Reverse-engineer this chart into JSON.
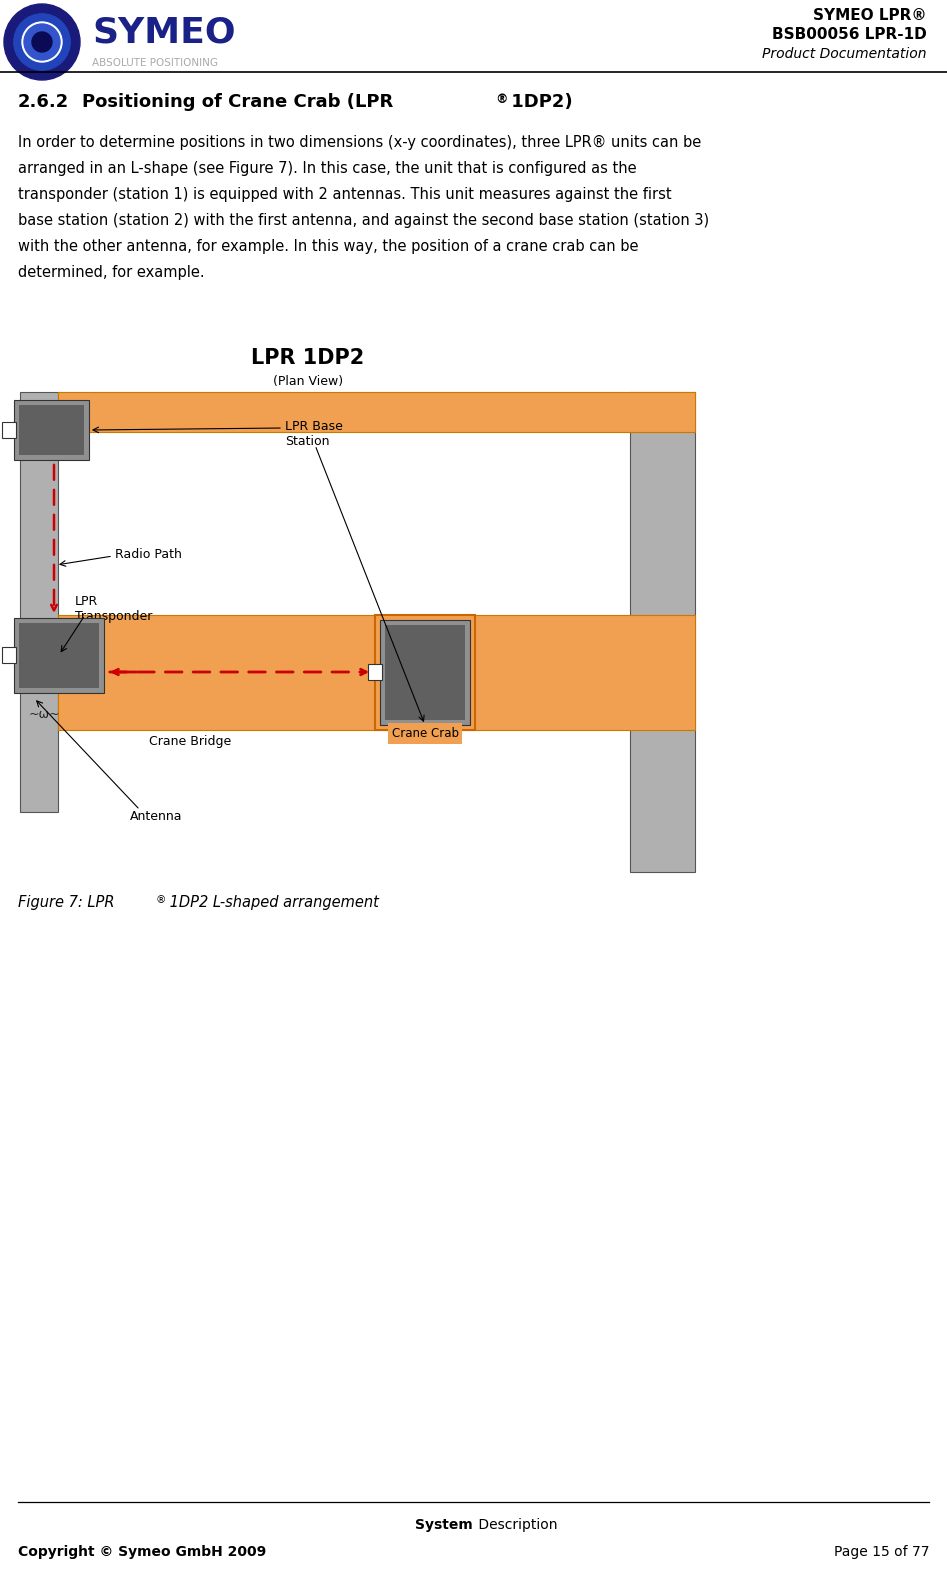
{
  "title_right_line1": "SYMEO LPR®",
  "title_right_line2": "BSB00056 LPR-1D",
  "title_right_line3": "Product Documentation",
  "section_title": "2.6.2    Positioning of Crane Crab (LPR® 1DP2)",
  "body_text_lines": [
    "In order to determine positions in two dimensions (x-y coordinates), three LPR® units can be",
    "arranged in an L-shape (see Figure 7). In this case, the unit that is configured as the",
    "transponder (station 1) is equipped with 2 antennas. This unit measures against the first",
    "base station (station 2) with the first antenna, and against the second base station (station 3)",
    "with the other antenna, for example. In this way, the position of a crane crab can be",
    "determined, for example."
  ],
  "figure_title": "LPR 1DP2",
  "figure_subtitle": "(Plan View)",
  "figure_caption_pre": "Figure 7: LPR",
  "figure_caption_post": " 1DP2 L-shaped arrangement",
  "footer_system_bold": "System",
  "footer_system_normal": " Description",
  "footer_left": "Copyright © Symeo GmbH 2009",
  "footer_right": "Page 15 of 77",
  "label_lpr_base": "LPR Base\nStation",
  "label_radio_path": "Radio Path",
  "label_lpr_transponder": "LPR\nTransponder",
  "label_crane_bridge": "Crane Bridge",
  "label_crane_crab": "Crane Crab",
  "label_antenna": "Antenna",
  "orange_color": "#F0A050",
  "gray_col_color": "#B0B0B0",
  "device_gray": "#909090",
  "device_dark": "#606060",
  "red_dashed": "#CC0000",
  "bg_color": "#FFFFFF",
  "black": "#000000"
}
